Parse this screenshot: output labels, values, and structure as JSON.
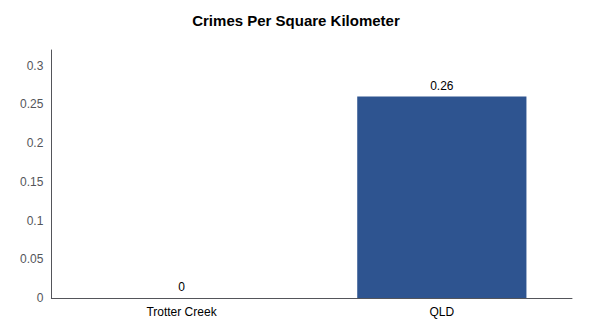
{
  "chart_data": {
    "type": "bar",
    "title": "Crimes Per Square Kilometer",
    "categories": [
      "Trotter Creek",
      "QLD"
    ],
    "values": [
      0,
      0.26
    ],
    "color": "#2e5490",
    "ylim": [
      0,
      0.32
    ],
    "yticks": [
      0,
      0.05,
      0.1,
      0.15,
      0.2,
      0.25,
      0.3
    ],
    "grid": false,
    "data_labels": true
  }
}
